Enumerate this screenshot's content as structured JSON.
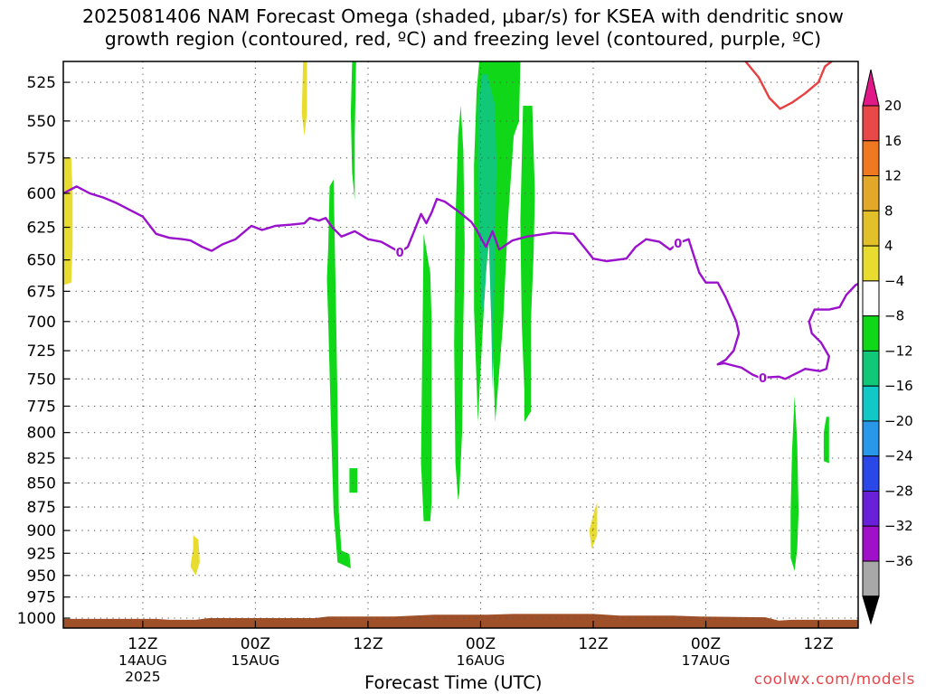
{
  "title_lines": [
    "2025081406 NAM Forecast Omega (shaded, μbar/s) for KSEA with dendritic snow",
    "growth region (contoured, red, ºC) and freezing level (contoured, purple, ºC)"
  ],
  "credit": "coolwx.com/models",
  "chart_data": {
    "type": "time-height-section",
    "xlabel": "Forecast Time (UTC)",
    "ylabel": "",
    "pressure_levels": [
      525,
      550,
      575,
      600,
      625,
      650,
      675,
      700,
      725,
      750,
      775,
      800,
      825,
      850,
      875,
      900,
      925,
      950,
      975,
      1000
    ],
    "ylim": [
      1012,
      512
    ],
    "y_scale": "log-pressure",
    "xlim_hours": [
      6,
      66
    ],
    "x_ticks": [
      {
        "hour": 12,
        "label": "12Z",
        "sub": "14AUG",
        "sub2": "2025"
      },
      {
        "hour": 20.5,
        "label": "00Z",
        "sub": "15AUG",
        "sub2": ""
      },
      {
        "hour": 29,
        "label": "12Z",
        "sub": "",
        "sub2": ""
      },
      {
        "hour": 37.5,
        "label": "00Z",
        "sub": "16AUG",
        "sub2": ""
      },
      {
        "hour": 46,
        "label": "12Z",
        "sub": "",
        "sub2": ""
      },
      {
        "hour": 54.5,
        "label": "00Z",
        "sub": "17AUG",
        "sub2": ""
      },
      {
        "hour": 63,
        "label": "12Z",
        "sub": "",
        "sub2": ""
      }
    ],
    "grid": true,
    "colorbar": {
      "levels": [
        20,
        16,
        12,
        8,
        4,
        -4,
        -8,
        -12,
        -16,
        -20,
        -24,
        -28,
        -32,
        -36
      ],
      "colors": [
        "#e84848",
        "#f07820",
        "#e2a82a",
        "#e2c02a",
        "#e8dc30",
        "#ffffff",
        "#10d818",
        "#10c878",
        "#10c8c8",
        "#2a98e8",
        "#2a48e8",
        "#6a20d8",
        "#a010c8",
        "#a8a8a8"
      ],
      "top_arrow": "#e01888",
      "bottom_arrow": "#000000"
    },
    "omega_regions": [
      {
        "value": "4 to 8",
        "color": "#e8dc30",
        "pts": [
          [
            6.0,
            575
          ],
          [
            6.6,
            575
          ],
          [
            6.7,
            600
          ],
          [
            6.7,
            640
          ],
          [
            6.6,
            668
          ],
          [
            6.0,
            670
          ]
        ]
      },
      {
        "value": "4 to 8",
        "color": "#e8dc30",
        "pts": [
          [
            24.1,
            512
          ],
          [
            24.4,
            512
          ],
          [
            24.4,
            545
          ],
          [
            24.2,
            560
          ],
          [
            24.0,
            545
          ]
        ]
      },
      {
        "value": "4 to 8",
        "color": "#e8dc30",
        "pts": [
          [
            15.8,
            905
          ],
          [
            16.2,
            910
          ],
          [
            16.3,
            935
          ],
          [
            16.0,
            950
          ],
          [
            15.6,
            940
          ],
          [
            15.8,
            920
          ]
        ]
      },
      {
        "value": "4 to 8",
        "color": "#e8dc30",
        "pts": [
          [
            46.1,
            878
          ],
          [
            46.3,
            870
          ],
          [
            46.3,
            905
          ],
          [
            45.9,
            920
          ],
          [
            45.7,
            900
          ]
        ]
      },
      {
        "value": "-4 to -8",
        "color": "#10d818",
        "pts": [
          [
            27.8,
            512
          ],
          [
            28.1,
            512
          ],
          [
            28.0,
            560
          ],
          [
            28.0,
            605
          ],
          [
            27.8,
            585
          ],
          [
            27.7,
            545
          ]
        ]
      },
      {
        "value": "-4 to -8",
        "color": "#10d818",
        "pts": [
          [
            26.1,
            595
          ],
          [
            26.4,
            590
          ],
          [
            26.5,
            640
          ],
          [
            26.6,
            700
          ],
          [
            26.7,
            775
          ],
          [
            26.8,
            880
          ],
          [
            27.0,
            922
          ],
          [
            27.6,
            926
          ],
          [
            27.7,
            942
          ],
          [
            26.7,
            935
          ],
          [
            26.4,
            880
          ],
          [
            26.2,
            790
          ],
          [
            26.0,
            700
          ],
          [
            25.9,
            665
          ],
          [
            26.0,
            640
          ]
        ]
      },
      {
        "value": "-4 to -8",
        "color": "#10d818",
        "pts": [
          [
            27.6,
            835
          ],
          [
            28.2,
            835
          ],
          [
            28.2,
            860
          ],
          [
            27.6,
            860
          ]
        ]
      },
      {
        "value": "-4 to -8",
        "color": "#10d818",
        "pts": [
          [
            33.2,
            630
          ],
          [
            33.7,
            660
          ],
          [
            33.8,
            700
          ],
          [
            33.8,
            780
          ],
          [
            33.8,
            870
          ],
          [
            33.7,
            890
          ],
          [
            33.2,
            890
          ],
          [
            33.0,
            830
          ],
          [
            33.1,
            720
          ]
        ]
      },
      {
        "value": "-4 to -8",
        "color": "#10d818",
        "pts": [
          [
            36.0,
            540
          ],
          [
            36.2,
            570
          ],
          [
            36.3,
            640
          ],
          [
            36.2,
            700
          ],
          [
            36.1,
            800
          ],
          [
            35.9,
            860
          ],
          [
            35.8,
            868
          ],
          [
            35.6,
            830
          ],
          [
            35.5,
            720
          ],
          [
            35.6,
            620
          ],
          [
            35.8,
            560
          ]
        ]
      },
      {
        "value": "-4 to -8",
        "color": "#10d818",
        "pts": [
          [
            37.4,
            512
          ],
          [
            40.5,
            512
          ],
          [
            40.4,
            550
          ],
          [
            40.0,
            560
          ],
          [
            39.6,
            615
          ],
          [
            39.4,
            655
          ],
          [
            39.2,
            700
          ],
          [
            38.8,
            760
          ],
          [
            38.6,
            790
          ],
          [
            38.4,
            720
          ],
          [
            38.3,
            620
          ],
          [
            37.9,
            660
          ],
          [
            37.6,
            720
          ],
          [
            37.3,
            790
          ],
          [
            37.0,
            690
          ],
          [
            37.0,
            580
          ],
          [
            37.2,
            530
          ]
        ]
      },
      {
        "value": "-8 to -12",
        "color": "#10c878",
        "pts": [
          [
            37.3,
            540
          ],
          [
            37.6,
            520
          ],
          [
            38.0,
            520
          ],
          [
            38.6,
            540
          ],
          [
            38.7,
            580
          ],
          [
            38.6,
            640
          ],
          [
            38.5,
            700
          ],
          [
            38.4,
            760
          ],
          [
            38.3,
            700
          ],
          [
            38.1,
            630
          ],
          [
            37.8,
            680
          ],
          [
            37.6,
            700
          ],
          [
            37.4,
            640
          ],
          [
            37.3,
            590
          ]
        ]
      },
      {
        "value": "-4 to -8",
        "color": "#10d818",
        "pts": [
          [
            40.7,
            540
          ],
          [
            41.4,
            540
          ],
          [
            41.6,
            600
          ],
          [
            41.5,
            645
          ],
          [
            41.3,
            700
          ],
          [
            41.3,
            780
          ],
          [
            40.8,
            790
          ],
          [
            40.8,
            760
          ],
          [
            40.6,
            700
          ],
          [
            40.5,
            620
          ]
        ]
      },
      {
        "value": "-4 to -8",
        "color": "#10d818",
        "pts": [
          [
            61.2,
            765
          ],
          [
            61.4,
            810
          ],
          [
            61.5,
            880
          ],
          [
            61.4,
            920
          ],
          [
            61.2,
            945
          ],
          [
            60.9,
            930
          ],
          [
            60.9,
            880
          ],
          [
            61.0,
            820
          ]
        ]
      },
      {
        "value": "-4 to -8",
        "color": "#10d818",
        "pts": [
          [
            63.6,
            785
          ],
          [
            63.8,
            785
          ],
          [
            63.8,
            830
          ],
          [
            63.4,
            828
          ],
          [
            63.4,
            800
          ]
        ]
      }
    ],
    "dgz_contour_red": [
      [
        57.5,
        512
      ],
      [
        58.5,
        522
      ],
      [
        59.3,
        535
      ],
      [
        60.1,
        542
      ],
      [
        61.0,
        538
      ],
      [
        62.0,
        532
      ],
      [
        63.0,
        525
      ],
      [
        63.5,
        515
      ],
      [
        64.0,
        512
      ]
    ],
    "freezing_level_purple": [
      [
        6.0,
        600
      ],
      [
        7.0,
        595
      ],
      [
        8.0,
        600
      ],
      [
        9.0,
        603
      ],
      [
        10.0,
        607
      ],
      [
        11.0,
        612
      ],
      [
        12.0,
        617
      ],
      [
        13.0,
        630
      ],
      [
        14.0,
        633
      ],
      [
        15.0,
        634
      ],
      [
        15.6,
        635
      ],
      [
        16.5,
        640
      ],
      [
        17.2,
        643
      ],
      [
        18.0,
        638
      ],
      [
        19.0,
        634
      ],
      [
        20.2,
        624
      ],
      [
        21.0,
        627
      ],
      [
        22.0,
        624
      ],
      [
        23.2,
        623
      ],
      [
        24.2,
        622
      ],
      [
        24.6,
        618
      ],
      [
        25.3,
        620
      ],
      [
        25.8,
        618
      ],
      [
        26.3,
        625
      ],
      [
        27.0,
        632
      ],
      [
        28.0,
        628
      ],
      [
        29.0,
        634
      ],
      [
        30.0,
        636
      ],
      [
        31.4,
        644
      ],
      [
        32.0,
        640
      ],
      [
        32.6,
        625
      ],
      [
        33.0,
        615
      ],
      [
        33.4,
        622
      ],
      [
        33.8,
        614
      ],
      [
        34.2,
        604
      ],
      [
        34.8,
        606
      ],
      [
        35.8,
        613
      ],
      [
        36.8,
        621
      ],
      [
        37.2,
        627
      ],
      [
        37.9,
        640
      ],
      [
        38.4,
        628
      ],
      [
        38.9,
        642
      ],
      [
        39.9,
        635
      ],
      [
        41.0,
        632
      ],
      [
        43.0,
        629
      ],
      [
        44.5,
        630
      ],
      [
        45.3,
        640
      ],
      [
        46.0,
        649
      ],
      [
        47.0,
        651
      ],
      [
        48.5,
        649
      ],
      [
        49.2,
        640
      ],
      [
        50.0,
        634
      ],
      [
        51.0,
        636
      ],
      [
        51.8,
        642
      ],
      [
        52.4,
        637
      ],
      [
        53.2,
        634
      ],
      [
        54.0,
        660
      ],
      [
        54.5,
        668
      ],
      [
        55.4,
        668
      ],
      [
        56.0,
        680
      ],
      [
        56.8,
        700
      ],
      [
        57.0,
        710
      ],
      [
        56.6,
        725
      ],
      [
        56.0,
        733
      ],
      [
        55.4,
        737
      ],
      [
        55.9,
        736
      ],
      [
        57.2,
        740
      ],
      [
        58.0,
        746
      ],
      [
        58.6,
        749
      ],
      [
        60.0,
        748
      ],
      [
        60.5,
        750
      ],
      [
        61.0,
        747
      ],
      [
        61.5,
        744
      ],
      [
        62.0,
        741
      ],
      [
        63.1,
        743
      ],
      [
        63.6,
        741
      ],
      [
        63.8,
        730
      ],
      [
        63.2,
        718
      ],
      [
        62.5,
        710
      ],
      [
        62.3,
        700
      ],
      [
        62.7,
        690
      ],
      [
        63.8,
        690
      ],
      [
        64.6,
        688
      ],
      [
        65.1,
        678
      ],
      [
        65.8,
        670
      ],
      [
        66.0,
        669
      ]
    ],
    "freezing_label": "0",
    "freezing_label_hours": [
      31.4,
      52.4,
      58.8
    ],
    "terrain_color": "#a05028",
    "terrain": [
      [
        6.0,
        1001
      ],
      [
        13.0,
        1001
      ],
      [
        14.0,
        1002
      ],
      [
        16.0,
        1002
      ],
      [
        17.0,
        1000
      ],
      [
        25.0,
        1000
      ],
      [
        26.0,
        998
      ],
      [
        31.0,
        998
      ],
      [
        34.0,
        996
      ],
      [
        38.0,
        996
      ],
      [
        40.0,
        995
      ],
      [
        46.0,
        995
      ],
      [
        48.0,
        997
      ],
      [
        52.0,
        997
      ],
      [
        54.0,
        998
      ],
      [
        59.0,
        999
      ],
      [
        60.0,
        1003
      ],
      [
        61.0,
        1002
      ],
      [
        62.0,
        1002
      ],
      [
        66.0,
        1002
      ]
    ]
  }
}
